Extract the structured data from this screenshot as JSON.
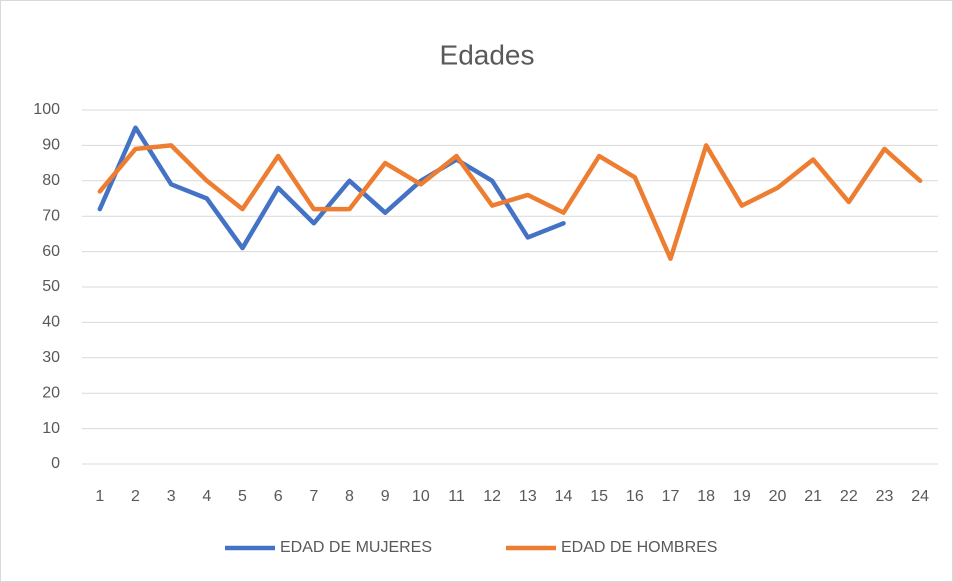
{
  "chart_data": {
    "type": "line",
    "title": "Edades",
    "categories": [
      "1",
      "2",
      "3",
      "4",
      "5",
      "6",
      "7",
      "8",
      "9",
      "10",
      "11",
      "12",
      "13",
      "14",
      "15",
      "16",
      "17",
      "18",
      "19",
      "20",
      "21",
      "22",
      "23",
      "24"
    ],
    "series": [
      {
        "name": "EDAD DE MUJERES",
        "color": "#4472c4",
        "values": [
          72,
          95,
          79,
          75,
          61,
          78,
          68,
          80,
          71,
          80,
          86,
          80,
          64,
          68,
          null,
          null,
          null,
          null,
          null,
          null,
          null,
          null,
          null,
          null
        ]
      },
      {
        "name": "EDAD DE HOMBRES",
        "color": "#ed7d31",
        "values": [
          77,
          89,
          90,
          80,
          72,
          87,
          72,
          72,
          85,
          79,
          87,
          73,
          76,
          71,
          87,
          81,
          58,
          90,
          73,
          78,
          86,
          74,
          89,
          80
        ]
      }
    ],
    "ylim": [
      0,
      100
    ],
    "yticks": [
      0,
      10,
      20,
      30,
      40,
      50,
      60,
      70,
      80,
      90,
      100
    ],
    "grid": true,
    "legend": "bottom"
  }
}
